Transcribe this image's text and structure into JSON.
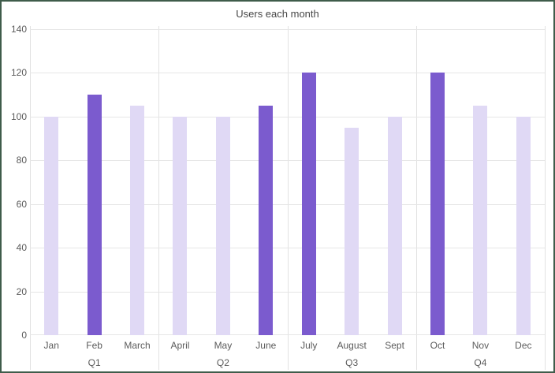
{
  "title": "Users each month",
  "chart_data": {
    "type": "bar",
    "title": "Users each month",
    "categories": [
      "Jan",
      "Feb",
      "March",
      "April",
      "May",
      "June",
      "July",
      "August",
      "Sept",
      "Oct",
      "Nov",
      "Dec"
    ],
    "values": [
      100,
      110,
      105,
      100,
      100,
      105,
      120,
      95,
      100,
      120,
      105,
      100
    ],
    "highlighted": [
      false,
      true,
      false,
      false,
      false,
      true,
      true,
      false,
      false,
      true,
      false,
      false
    ],
    "quarter_labels": [
      "Q1",
      "Q2",
      "Q3",
      "Q4"
    ],
    "months_per_group": 3,
    "xlabel": "",
    "ylabel": "",
    "ylim": [
      0,
      140
    ],
    "yticks": [
      0,
      20,
      40,
      60,
      80,
      100,
      120,
      140
    ],
    "grid": true,
    "legend": "none",
    "colors": {
      "bar_highlight": "#7b5bce",
      "bar_muted": "#e0d9f5",
      "gridline": "#e6e6e6",
      "separator": "#e2e2e2",
      "frame_border": "#3f5c4b",
      "title_text": "#474747",
      "axis_text": "#5b5b5b"
    }
  }
}
